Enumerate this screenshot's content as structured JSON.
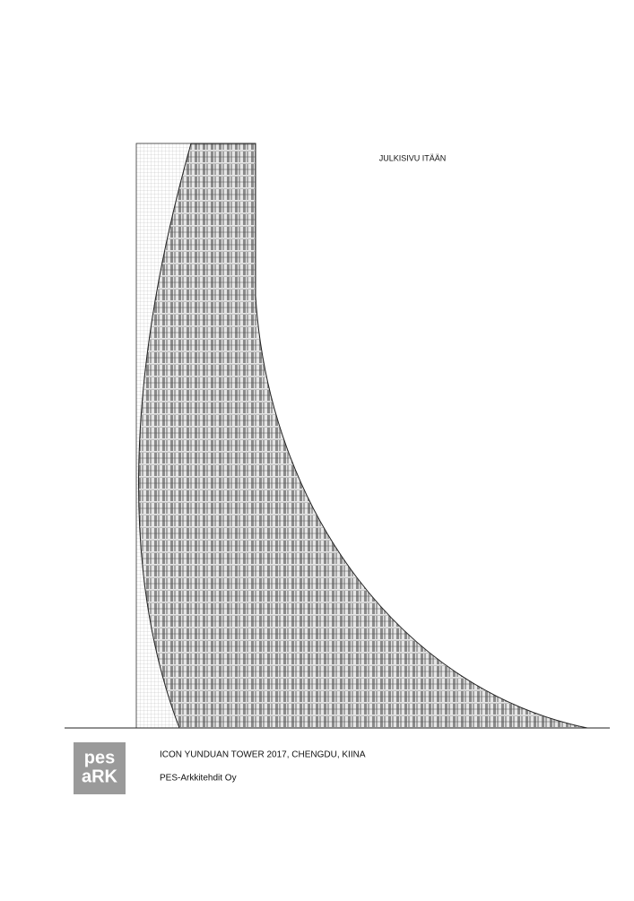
{
  "drawing": {
    "title": "JULKISIVU ITÄÄN"
  },
  "caption": {
    "project": "ICON YUNDUAN TOWER 2017, CHENGDU, KIINA",
    "office": "PES-Arkkitehdit Oy"
  },
  "logo": {
    "line1": "pes",
    "line2": "aRK"
  }
}
